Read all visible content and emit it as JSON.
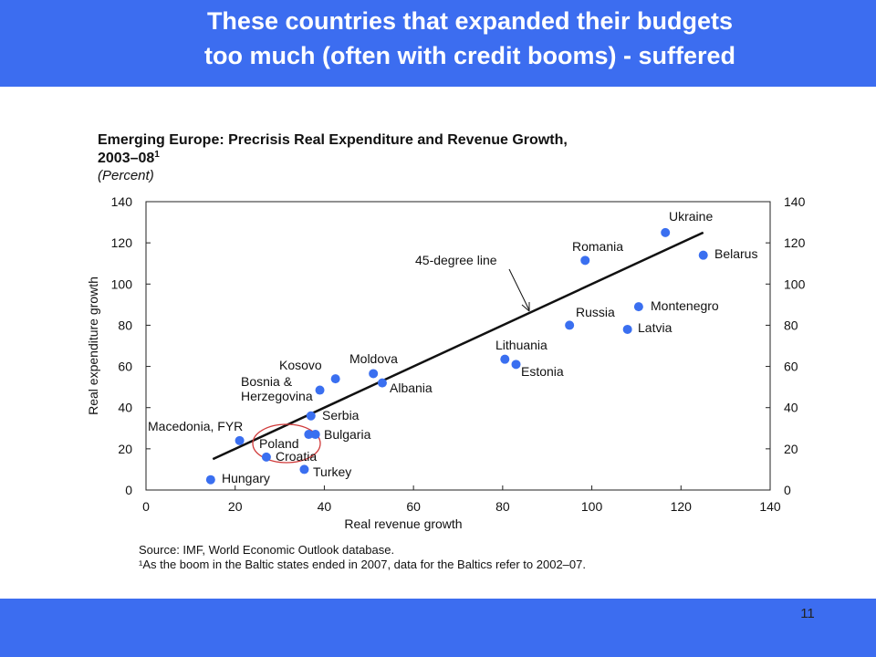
{
  "slide": {
    "title_line1": "These countries that expanded their budgets",
    "title_line2": "too much (often with credit booms) - suffered",
    "page_number": "11"
  },
  "colors": {
    "band": "#3c6df0",
    "marker": "#3a6ff0",
    "circle": "#d03a3a"
  },
  "chart_data": {
    "type": "scatter",
    "title_line1": "Emerging Europe: Precrisis Real Expenditure and Revenue Growth,",
    "title_line2": "2003–08",
    "title_superscript": "1",
    "subtitle": "(Percent)",
    "xlabel": "Real revenue growth",
    "ylabel": "Real expenditure growth",
    "xlim": [
      0,
      140
    ],
    "ylim": [
      0,
      140
    ],
    "xticks": [
      0,
      20,
      40,
      60,
      80,
      100,
      120,
      140
    ],
    "yticks": [
      0,
      20,
      40,
      60,
      80,
      100,
      120,
      140
    ],
    "grid": false,
    "points": [
      {
        "label": "Ukraine",
        "x": 116.5,
        "y": 125
      },
      {
        "label": "Belarus",
        "x": 125,
        "y": 114
      },
      {
        "label": "Romania",
        "x": 98.5,
        "y": 111.5
      },
      {
        "label": "Montenegro",
        "x": 110.5,
        "y": 89
      },
      {
        "label": "Latvia",
        "x": 108,
        "y": 78
      },
      {
        "label": "Russia",
        "x": 95,
        "y": 80
      },
      {
        "label": "Lithuania",
        "x": 80.5,
        "y": 63.5
      },
      {
        "label": "Estonia",
        "x": 83,
        "y": 61
      },
      {
        "label": "Moldova",
        "x": 51,
        "y": 56.5
      },
      {
        "label": "Kosovo",
        "x": 42.5,
        "y": 54
      },
      {
        "label": "Albania",
        "x": 53,
        "y": 52
      },
      {
        "label": "Bosnia &\nHerzegovina",
        "x": 39,
        "y": 48.5
      },
      {
        "label": "Serbia",
        "x": 37,
        "y": 36
      },
      {
        "label": "Bulgaria",
        "x": 38,
        "y": 27
      },
      {
        "label": "Poland",
        "x": 36.5,
        "y": 27
      },
      {
        "label": "Macedonia, FYR",
        "x": 21,
        "y": 24
      },
      {
        "label": "Croatia",
        "x": 27,
        "y": 16
      },
      {
        "label": "Turkey",
        "x": 35.5,
        "y": 10
      },
      {
        "label": "Hungary",
        "x": 14.5,
        "y": 5
      }
    ],
    "reference_line": {
      "label": "45-degree line",
      "from": [
        15,
        15
      ],
      "to": [
        125,
        125
      ]
    },
    "source_note": "Source: IMF, World Economic Outlook database.",
    "footnote": "¹As the boom in the Baltic states ended in 2007, data for the Baltics refer to 2002–07."
  }
}
